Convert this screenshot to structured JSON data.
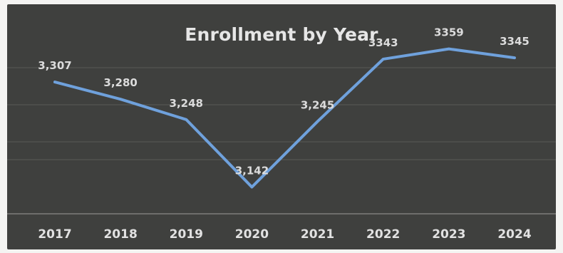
{
  "chart_data": {
    "type": "line",
    "title": "Enrollment by Year",
    "xlabel": "",
    "ylabel": "",
    "categories": [
      "2017",
      "2018",
      "2019",
      "2020",
      "2021",
      "2022",
      "2023",
      "2024"
    ],
    "series": [
      {
        "values": [
          3307,
          3280,
          3248,
          3142,
          3245,
          3343,
          3359,
          3345
        ],
        "labels": [
          "3,307",
          "3,280",
          "3,248",
          "3,142",
          "3,245",
          "3343",
          "3359",
          "3345"
        ],
        "color": "#6fa1dc"
      }
    ],
    "ylim": [
      3100,
      3400
    ],
    "grid": true,
    "legend": "none",
    "background_color": "#3f403e"
  }
}
